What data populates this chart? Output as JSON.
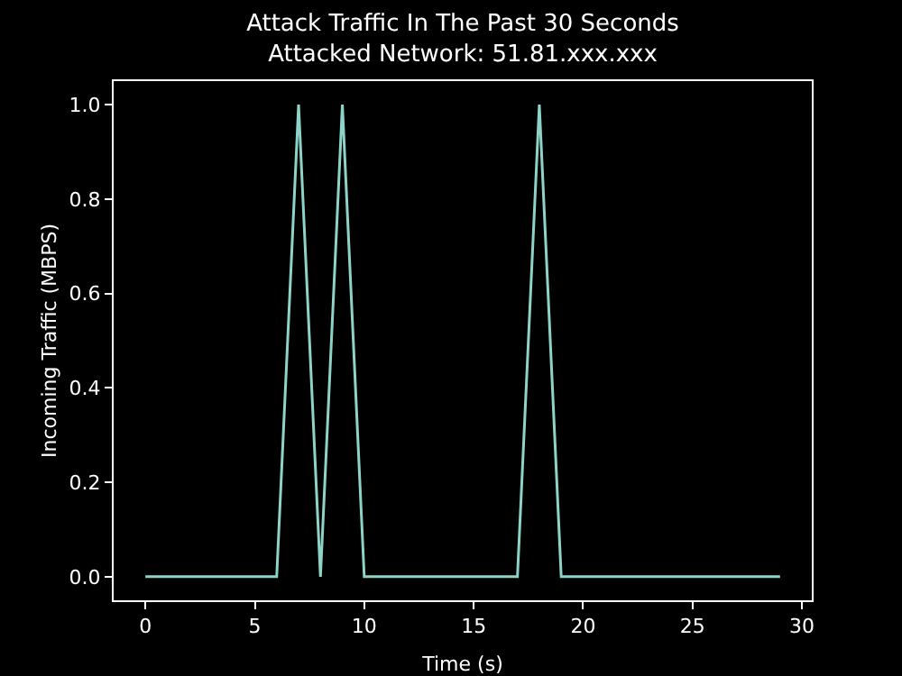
{
  "chart_data": {
    "type": "line",
    "title": "Attack Traffic In The Past 30 Seconds\nAttacked Network: 51.81.xxx.xxx",
    "xlabel": "Time (s)",
    "ylabel": "Incoming Traffic (MBPS)",
    "x": [
      0,
      1,
      2,
      3,
      4,
      5,
      6,
      7,
      8,
      9,
      10,
      11,
      12,
      13,
      14,
      15,
      16,
      17,
      18,
      19,
      20,
      21,
      22,
      23,
      24,
      25,
      26,
      27,
      28,
      29
    ],
    "series": [
      {
        "color": "#8dd3c7",
        "values": [
          0,
          0,
          0,
          0,
          0,
          0,
          0,
          1,
          0,
          1,
          0,
          0,
          0,
          0,
          0,
          0,
          0,
          0,
          1,
          0,
          0,
          0,
          0,
          0,
          0,
          0,
          0,
          0,
          0,
          0
        ]
      }
    ],
    "xlim": [
      -1.45,
      30.45
    ],
    "ylim": [
      -0.05,
      1.05
    ],
    "xticks": [
      0,
      5,
      10,
      15,
      20,
      25,
      30
    ],
    "yticks": [
      {
        "value": 0,
        "label": "0.0"
      },
      {
        "value": 0.2,
        "label": "0.2"
      },
      {
        "value": 0.4,
        "label": "0.4"
      },
      {
        "value": 0.6,
        "label": "0.6"
      },
      {
        "value": 0.8,
        "label": "0.8"
      },
      {
        "value": 1,
        "label": "1.0"
      }
    ],
    "grid": false,
    "marker": "none",
    "line_style": "solid"
  }
}
